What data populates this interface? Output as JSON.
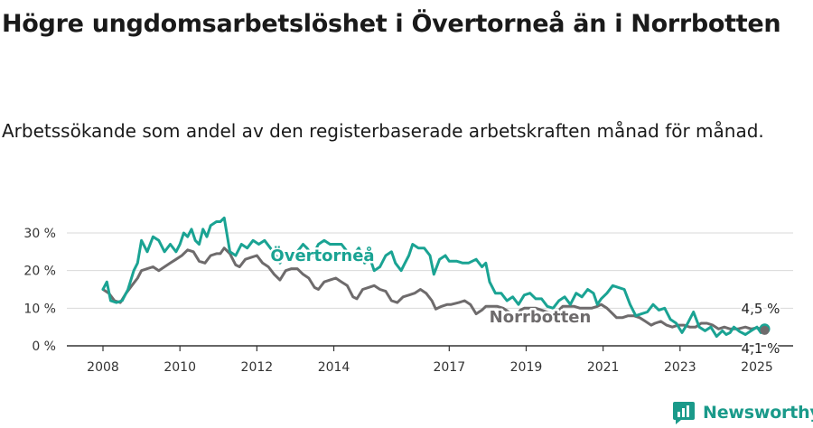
{
  "title": "Högre ungdomsarbetslöshet i Övertorneå än i Norrbotten",
  "subtitle": "Arbetssökande som andel av den registerbaserade arbetskraften månad för månad.",
  "brand": "Newsworthy",
  "colors": {
    "overtornea": "#1aa393",
    "norrbotten": "#6e6b6c",
    "grid": "#d9d9d9",
    "axis": "#333333"
  },
  "chart_data": {
    "type": "line",
    "title": "Högre ungdomsarbetslöshet i Övertorneå än i Norrbotten",
    "xlabel": "",
    "ylabel": "",
    "xlim": [
      2008,
      2025.6
    ],
    "ylim": [
      0,
      32
    ],
    "yticks": [
      0,
      10,
      20,
      30
    ],
    "ytick_labels": [
      "0 %",
      "10 %",
      "20 %",
      "30 %"
    ],
    "xticks": [
      2008,
      2010,
      2012,
      2014,
      2017,
      2019,
      2021,
      2023,
      2025
    ],
    "xtick_labels": [
      "2008",
      "2010",
      "2012",
      "2014",
      "2017",
      "2019",
      "2021",
      "2023",
      "2025"
    ],
    "grid": true,
    "series": [
      {
        "name": "Övertorneå",
        "color": "#1aa393",
        "end_label": "4,5 %",
        "points": [
          [
            2008.0,
            15
          ],
          [
            2008.1,
            17
          ],
          [
            2008.2,
            12
          ],
          [
            2008.35,
            11.5
          ],
          [
            2008.5,
            12
          ],
          [
            2008.65,
            15
          ],
          [
            2008.8,
            20
          ],
          [
            2008.9,
            22
          ],
          [
            2009.0,
            28
          ],
          [
            2009.15,
            25
          ],
          [
            2009.3,
            29
          ],
          [
            2009.45,
            28
          ],
          [
            2009.6,
            25
          ],
          [
            2009.75,
            27
          ],
          [
            2009.9,
            25
          ],
          [
            2010.0,
            27
          ],
          [
            2010.1,
            30
          ],
          [
            2010.2,
            29
          ],
          [
            2010.3,
            31
          ],
          [
            2010.4,
            28
          ],
          [
            2010.5,
            27
          ],
          [
            2010.6,
            31
          ],
          [
            2010.7,
            29
          ],
          [
            2010.8,
            32
          ],
          [
            2010.95,
            33
          ],
          [
            2011.05,
            33
          ],
          [
            2011.15,
            34
          ],
          [
            2011.3,
            25
          ],
          [
            2011.45,
            24
          ],
          [
            2011.6,
            27
          ],
          [
            2011.75,
            26
          ],
          [
            2011.9,
            28
          ],
          [
            2012.05,
            27
          ],
          [
            2012.2,
            28
          ],
          [
            2012.35,
            26
          ],
          [
            2012.5,
            24
          ],
          [
            2012.6,
            22
          ],
          [
            2012.75,
            25
          ],
          [
            2012.9,
            23
          ],
          [
            2013.05,
            25
          ],
          [
            2013.2,
            27
          ],
          [
            2013.3,
            26
          ],
          [
            2013.45,
            24
          ],
          [
            2013.6,
            27
          ],
          [
            2013.75,
            28
          ],
          [
            2013.9,
            27
          ],
          [
            2014.05,
            27
          ],
          [
            2014.2,
            27
          ],
          [
            2014.35,
            25
          ],
          [
            2014.5,
            24
          ],
          [
            2014.65,
            26
          ],
          [
            2014.8,
            22
          ],
          [
            2014.95,
            23
          ],
          [
            2015.05,
            20
          ],
          [
            2015.2,
            21
          ],
          [
            2015.35,
            24
          ],
          [
            2015.5,
            25
          ],
          [
            2015.6,
            22
          ],
          [
            2015.75,
            20
          ],
          [
            2015.85,
            22
          ],
          [
            2015.95,
            24
          ],
          [
            2016.05,
            27
          ],
          [
            2016.2,
            26
          ],
          [
            2016.35,
            26
          ],
          [
            2016.5,
            24
          ],
          [
            2016.6,
            19
          ],
          [
            2016.75,
            23
          ],
          [
            2016.9,
            24
          ],
          [
            2017.0,
            22.5
          ],
          [
            2017.2,
            22.5
          ],
          [
            2017.35,
            22
          ],
          [
            2017.5,
            22
          ],
          [
            2017.7,
            23
          ],
          [
            2017.85,
            21
          ],
          [
            2017.95,
            22
          ],
          [
            2018.05,
            17
          ],
          [
            2018.2,
            14
          ],
          [
            2018.35,
            14
          ],
          [
            2018.5,
            12
          ],
          [
            2018.65,
            13
          ],
          [
            2018.8,
            11
          ],
          [
            2018.95,
            13.5
          ],
          [
            2019.1,
            14
          ],
          [
            2019.25,
            12.5
          ],
          [
            2019.4,
            12.5
          ],
          [
            2019.55,
            10.5
          ],
          [
            2019.7,
            10
          ],
          [
            2019.85,
            12
          ],
          [
            2020.0,
            13
          ],
          [
            2020.15,
            11
          ],
          [
            2020.3,
            14
          ],
          [
            2020.45,
            13
          ],
          [
            2020.6,
            15
          ],
          [
            2020.75,
            14
          ],
          [
            2020.85,
            11
          ],
          [
            2020.95,
            12.5
          ],
          [
            2021.1,
            14
          ],
          [
            2021.25,
            16
          ],
          [
            2021.4,
            15.5
          ],
          [
            2021.55,
            15
          ],
          [
            2021.7,
            11
          ],
          [
            2021.85,
            8
          ],
          [
            2022.0,
            8.5
          ],
          [
            2022.15,
            9
          ],
          [
            2022.3,
            11
          ],
          [
            2022.45,
            9.5
          ],
          [
            2022.6,
            10
          ],
          [
            2022.75,
            7
          ],
          [
            2022.9,
            6
          ],
          [
            2023.05,
            3.5
          ],
          [
            2023.2,
            6
          ],
          [
            2023.35,
            9
          ],
          [
            2023.5,
            5
          ],
          [
            2023.65,
            4
          ],
          [
            2023.8,
            5
          ],
          [
            2023.95,
            2.5
          ],
          [
            2024.1,
            4
          ],
          [
            2024.2,
            3
          ],
          [
            2024.3,
            3.5
          ],
          [
            2024.4,
            5
          ],
          [
            2024.55,
            3.8
          ],
          [
            2024.7,
            3
          ],
          [
            2024.85,
            4
          ],
          [
            2025.0,
            5
          ],
          [
            2025.1,
            3.5
          ],
          [
            2025.2,
            4.5
          ]
        ]
      },
      {
        "name": "Norrbotten",
        "color": "#6e6b6c",
        "end_label": "4,1 %",
        "points": [
          [
            2008.0,
            15
          ],
          [
            2008.15,
            14
          ],
          [
            2008.3,
            12
          ],
          [
            2008.45,
            11.5
          ],
          [
            2008.6,
            14
          ],
          [
            2008.75,
            16
          ],
          [
            2008.9,
            18
          ],
          [
            2009.0,
            20
          ],
          [
            2009.15,
            20.5
          ],
          [
            2009.3,
            21
          ],
          [
            2009.45,
            20
          ],
          [
            2009.6,
            21
          ],
          [
            2009.75,
            22
          ],
          [
            2009.9,
            23
          ],
          [
            2010.05,
            24
          ],
          [
            2010.2,
            25.5
          ],
          [
            2010.35,
            25
          ],
          [
            2010.5,
            22.5
          ],
          [
            2010.65,
            22
          ],
          [
            2010.8,
            24
          ],
          [
            2010.95,
            24.5
          ],
          [
            2011.05,
            24.5
          ],
          [
            2011.15,
            26
          ],
          [
            2011.3,
            24.5
          ],
          [
            2011.45,
            21.5
          ],
          [
            2011.55,
            21
          ],
          [
            2011.7,
            23
          ],
          [
            2011.85,
            23.5
          ],
          [
            2012.0,
            24
          ],
          [
            2012.15,
            22
          ],
          [
            2012.3,
            21
          ],
          [
            2012.45,
            19
          ],
          [
            2012.6,
            17.5
          ],
          [
            2012.75,
            20
          ],
          [
            2012.9,
            20.5
          ],
          [
            2013.05,
            20.5
          ],
          [
            2013.2,
            19
          ],
          [
            2013.35,
            18
          ],
          [
            2013.5,
            15.5
          ],
          [
            2013.6,
            15
          ],
          [
            2013.75,
            17
          ],
          [
            2013.9,
            17.5
          ],
          [
            2014.05,
            18
          ],
          [
            2014.2,
            17
          ],
          [
            2014.35,
            16
          ],
          [
            2014.5,
            13
          ],
          [
            2014.6,
            12.5
          ],
          [
            2014.75,
            15
          ],
          [
            2014.9,
            15.5
          ],
          [
            2015.05,
            16
          ],
          [
            2015.2,
            15
          ],
          [
            2015.35,
            14.5
          ],
          [
            2015.5,
            12
          ],
          [
            2015.65,
            11.5
          ],
          [
            2015.8,
            13
          ],
          [
            2015.95,
            13.5
          ],
          [
            2016.1,
            14
          ],
          [
            2016.25,
            15
          ],
          [
            2016.4,
            14
          ],
          [
            2016.55,
            12
          ],
          [
            2016.65,
            9.8
          ],
          [
            2016.8,
            10.5
          ],
          [
            2016.95,
            11
          ],
          [
            2017.05,
            11
          ],
          [
            2017.25,
            11.5
          ],
          [
            2017.4,
            12
          ],
          [
            2017.55,
            11
          ],
          [
            2017.7,
            8.5
          ],
          [
            2017.85,
            9.5
          ],
          [
            2017.95,
            10.5
          ],
          [
            2018.1,
            10.5
          ],
          [
            2018.25,
            10.5
          ],
          [
            2018.4,
            10
          ],
          [
            2018.55,
            9
          ],
          [
            2018.7,
            7.5
          ],
          [
            2018.85,
            9.5
          ],
          [
            2018.95,
            10
          ],
          [
            2019.1,
            10
          ],
          [
            2019.25,
            10
          ],
          [
            2019.4,
            9.5
          ],
          [
            2019.55,
            9
          ],
          [
            2019.7,
            8.5
          ],
          [
            2019.85,
            9.5
          ],
          [
            2019.95,
            10.5
          ],
          [
            2020.1,
            10.5
          ],
          [
            2020.25,
            10.5
          ],
          [
            2020.4,
            10
          ],
          [
            2020.55,
            10
          ],
          [
            2020.7,
            10
          ],
          [
            2020.85,
            10.5
          ],
          [
            2020.95,
            11
          ],
          [
            2021.1,
            10
          ],
          [
            2021.25,
            8.5
          ],
          [
            2021.35,
            7.5
          ],
          [
            2021.5,
            7.5
          ],
          [
            2021.65,
            8
          ],
          [
            2021.8,
            8
          ],
          [
            2021.95,
            7.5
          ],
          [
            2022.1,
            6.5
          ],
          [
            2022.25,
            5.5
          ],
          [
            2022.35,
            6
          ],
          [
            2022.5,
            6.5
          ],
          [
            2022.65,
            5.5
          ],
          [
            2022.8,
            5
          ],
          [
            2022.95,
            5.5
          ],
          [
            2023.1,
            5.5
          ],
          [
            2023.25,
            5
          ],
          [
            2023.4,
            5
          ],
          [
            2023.55,
            6
          ],
          [
            2023.7,
            6
          ],
          [
            2023.85,
            5.5
          ],
          [
            2024.0,
            4.5
          ],
          [
            2024.15,
            5
          ],
          [
            2024.3,
            4.5
          ],
          [
            2024.5,
            4.5
          ],
          [
            2024.7,
            5
          ],
          [
            2024.85,
            4.5
          ],
          [
            2025.0,
            4.8
          ],
          [
            2025.1,
            4.5
          ],
          [
            2025.2,
            4.1
          ]
        ]
      }
    ]
  }
}
